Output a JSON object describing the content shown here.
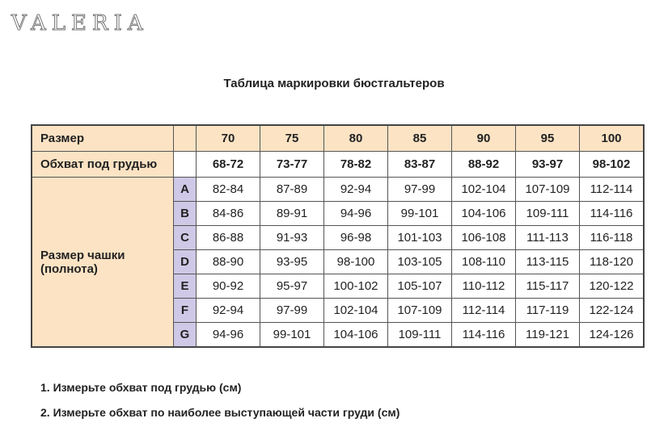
{
  "logo": "VALERIA",
  "title": "Таблица маркировки бюстгальтеров",
  "table": {
    "header_label": "Размер",
    "sizes": [
      "70",
      "75",
      "80",
      "85",
      "90",
      "95",
      "100"
    ],
    "underbust_label": "Обхват под грудью",
    "underbust": [
      "68-72",
      "73-77",
      "78-82",
      "83-87",
      "88-92",
      "93-97",
      "98-102"
    ],
    "cup_label": "Размер чашки (полнота)",
    "cups": [
      {
        "letter": "A",
        "values": [
          "82-84",
          "87-89",
          "92-94",
          "97-99",
          "102-104",
          "107-109",
          "112-114"
        ]
      },
      {
        "letter": "B",
        "values": [
          "84-86",
          "89-91",
          "94-96",
          "99-101",
          "104-106",
          "109-111",
          "114-116"
        ]
      },
      {
        "letter": "C",
        "values": [
          "86-88",
          "91-93",
          "96-98",
          "101-103",
          "106-108",
          "111-113",
          "116-118"
        ]
      },
      {
        "letter": "D",
        "values": [
          "88-90",
          "93-95",
          "98-100",
          "103-105",
          "108-110",
          "113-115",
          "118-120"
        ]
      },
      {
        "letter": "E",
        "values": [
          "90-92",
          "95-97",
          "100-102",
          "105-107",
          "110-112",
          "115-117",
          "120-122"
        ]
      },
      {
        "letter": "F",
        "values": [
          "92-94",
          "97-99",
          "102-104",
          "107-109",
          "112-114",
          "117-119",
          "122-124"
        ]
      },
      {
        "letter": "G",
        "values": [
          "94-96",
          "99-101",
          "104-106",
          "109-111",
          "114-116",
          "119-121",
          "124-126"
        ]
      }
    ]
  },
  "notes": [
    "1. Измерьте обхват под грудью (см)",
    "2. Измерьте обхват по наиболее выступающей части груди (см)"
  ],
  "colors": {
    "header": "#fbe3c4",
    "cup_letter": "#cfc8e6"
  }
}
